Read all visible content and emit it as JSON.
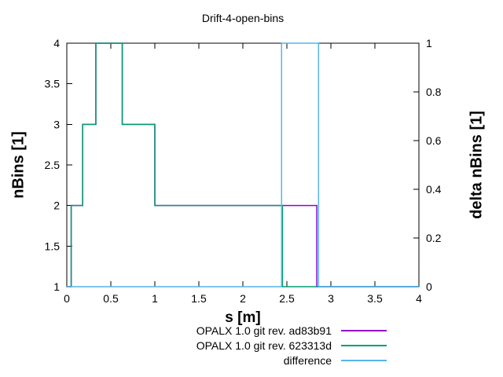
{
  "title": "Drift-4-open-bins",
  "chart_data": {
    "type": "line",
    "title": "Drift-4-open-bins",
    "xlabel": "s [m]",
    "ylabel": "nBins [1]",
    "y2label": "delta nBins [1]",
    "xlim": [
      0,
      4
    ],
    "ylim": [
      1,
      4
    ],
    "y2lim": [
      0,
      1
    ],
    "xticks": [
      0,
      0.5,
      1,
      1.5,
      2,
      2.5,
      3,
      3.5,
      4
    ],
    "yticks": [
      1,
      1.5,
      2,
      2.5,
      3,
      3.5,
      4
    ],
    "y2ticks": [
      0,
      0.2,
      0.4,
      0.6,
      0.8,
      1
    ],
    "grid": false,
    "legend_position": "below-right",
    "series": [
      {
        "name": "OPALX 1.0 git rev. ad83b91",
        "color": "#9400d3",
        "axis": "y1",
        "points": [
          [
            0,
            1
          ],
          [
            0.05,
            1
          ],
          [
            0.05,
            2
          ],
          [
            0.18,
            2
          ],
          [
            0.18,
            3
          ],
          [
            0.33,
            3
          ],
          [
            0.33,
            4
          ],
          [
            0.63,
            4
          ],
          [
            0.63,
            3
          ],
          [
            1.0,
            3
          ],
          [
            1.0,
            2
          ],
          [
            2.84,
            2
          ],
          [
            2.84,
            1
          ],
          [
            4,
            1
          ]
        ]
      },
      {
        "name": "OPALX 1.0 git rev. 623313d",
        "color": "#009e73",
        "axis": "y1",
        "points": [
          [
            0,
            1
          ],
          [
            0.05,
            1
          ],
          [
            0.05,
            2
          ],
          [
            0.18,
            2
          ],
          [
            0.18,
            3
          ],
          [
            0.33,
            3
          ],
          [
            0.33,
            4
          ],
          [
            0.63,
            4
          ],
          [
            0.63,
            3
          ],
          [
            1.0,
            3
          ],
          [
            1.0,
            2
          ],
          [
            2.45,
            2
          ],
          [
            2.45,
            1
          ],
          [
            4,
            1
          ]
        ]
      },
      {
        "name": "difference",
        "color": "#56b4e9",
        "axis": "y2",
        "points": [
          [
            0,
            0
          ],
          [
            2.44,
            0
          ],
          [
            2.44,
            1
          ],
          [
            2.86,
            1
          ],
          [
            2.86,
            0
          ],
          [
            4,
            0
          ]
        ]
      }
    ]
  }
}
